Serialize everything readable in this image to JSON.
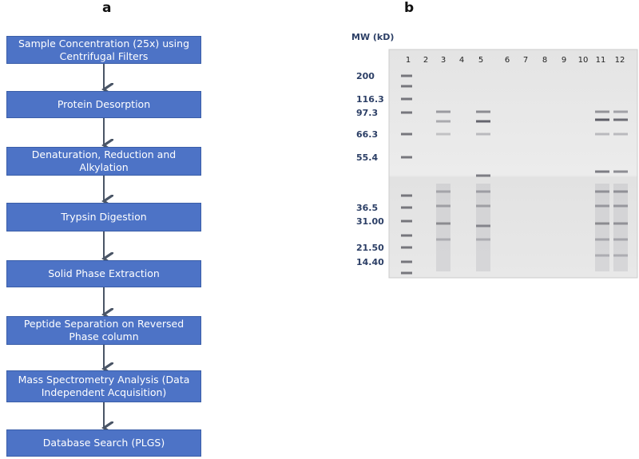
{
  "panel_a": {
    "label": "a",
    "nodes": [
      {
        "lines": [
          "Sample Concentration (25x) using",
          "Centrifugal Filters"
        ]
      },
      {
        "lines": [
          "Protein Desorption"
        ]
      },
      {
        "lines": [
          "Denaturation, Reduction and",
          "Alkylation"
        ]
      },
      {
        "lines": [
          "Trypsin Digestion"
        ]
      },
      {
        "lines": [
          "Solid Phase Extraction"
        ]
      },
      {
        "lines": [
          "Peptide Separation on Reversed",
          "Phase column"
        ]
      },
      {
        "lines": [
          "Mass Spectrometry  Analysis (Data",
          "Independent Acquisition)"
        ]
      },
      {
        "lines": [
          "Database Search (PLGS)"
        ]
      }
    ]
  },
  "panel_b": {
    "label": "b",
    "axis_label": "MW (kD)",
    "markers": [
      "200",
      "116.3",
      "97.3",
      "66.3",
      "55.4",
      "36.5",
      "31.00",
      "21.50",
      "14.40"
    ],
    "lanes": [
      "1",
      "2",
      "3",
      "4",
      "5",
      "6",
      "7",
      "8",
      "9",
      "10",
      "11",
      "12"
    ]
  }
}
